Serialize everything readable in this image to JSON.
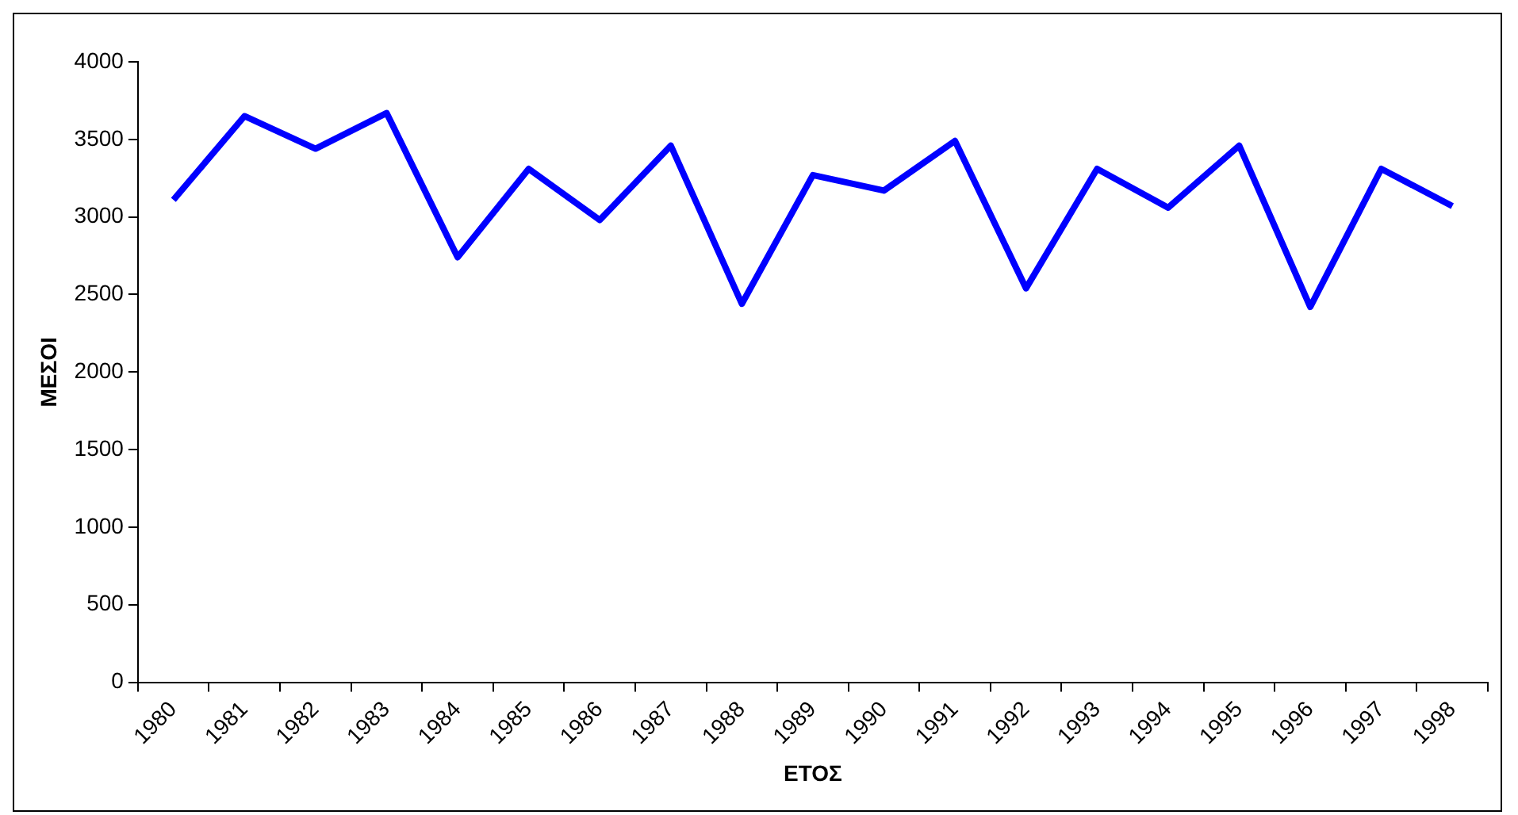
{
  "chart_data": {
    "type": "line",
    "xlabel": "ΕΤΟΣ",
    "ylabel": "ΜΕΣΟΙ",
    "categories": [
      "1980",
      "1981",
      "1982",
      "1983",
      "1984",
      "1985",
      "1986",
      "1987",
      "1988",
      "1989",
      "1990",
      "1991",
      "1992",
      "1993",
      "1994",
      "1995",
      "1996",
      "1997",
      "1998"
    ],
    "series": [
      {
        "color": "#0000ff",
        "values": [
          3110,
          3650,
          3440,
          3670,
          2740,
          3310,
          2980,
          3460,
          2440,
          3270,
          3170,
          3490,
          2540,
          3310,
          3060,
          3460,
          2420,
          3310,
          3070
        ]
      }
    ],
    "ylim": [
      0,
      4000
    ],
    "yticks": [
      0,
      500,
      1000,
      1500,
      2000,
      2500,
      3000,
      3500,
      4000
    ],
    "grid": false,
    "legend": false,
    "marker": "none",
    "line_style": "solid"
  }
}
